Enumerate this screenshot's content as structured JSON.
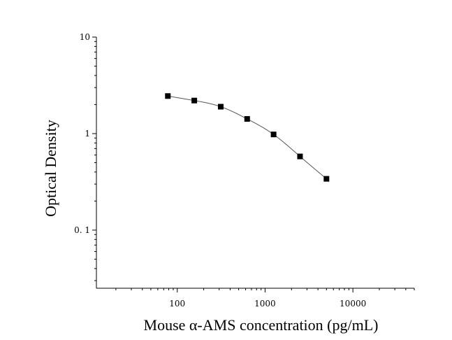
{
  "chart_data": {
    "type": "scatter",
    "xlabel": "Mouse α-AMS concentration (pg/mL)",
    "ylabel": "Optical Density",
    "xscale": "log",
    "yscale": "log",
    "xlim": [
      12,
      50000
    ],
    "ylim": [
      0.025,
      10
    ],
    "x_ticks": [
      100,
      1000,
      10000
    ],
    "x_tick_labels": [
      "100",
      "1000",
      "10000"
    ],
    "y_ticks": [
      10,
      1,
      0.1
    ],
    "y_tick_labels": [
      "10",
      "1",
      "0. 1"
    ],
    "grid": false,
    "legend": "none",
    "marker": "square",
    "series": [
      {
        "x": [
          78.125,
          156.25,
          312.5,
          625,
          1250,
          2500,
          5000
        ],
        "y": [
          2.45,
          2.2,
          1.9,
          1.42,
          0.98,
          0.58,
          0.34
        ],
        "fit_curve": true
      }
    ]
  }
}
